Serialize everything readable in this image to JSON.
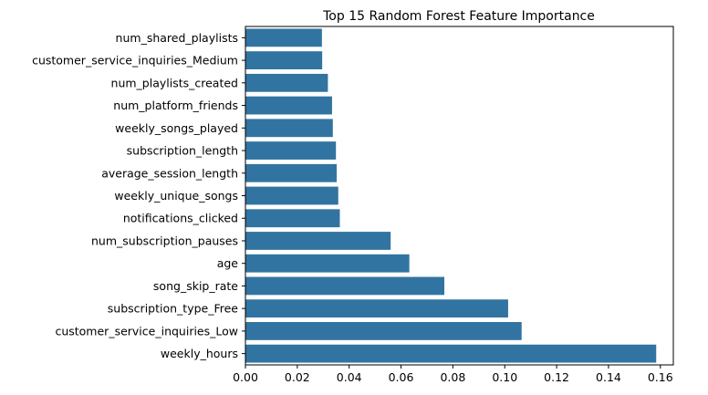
{
  "chart_data": {
    "type": "bar",
    "orientation": "horizontal",
    "title": "Top 15 Random Forest Feature Importance",
    "xlabel": "",
    "ylabel": "",
    "xlim": [
      0,
      0.165
    ],
    "xticks": [
      "0.00",
      "0.02",
      "0.04",
      "0.06",
      "0.08",
      "0.10",
      "0.12",
      "0.14",
      "0.16"
    ],
    "bar_color": "#3274a1",
    "grid": false,
    "categories": [
      "num_shared_playlists",
      "customer_service_inquiries_Medium",
      "num_playlists_created",
      "num_platform_friends",
      "weekly_songs_played",
      "subscription_length",
      "average_session_length",
      "weekly_unique_songs",
      "notifications_clicked",
      "num_subscription_pauses",
      "age",
      "song_skip_rate",
      "subscription_type_Free",
      "customer_service_inquiries_Low",
      "weekly_hours"
    ],
    "values": [
      0.0295,
      0.0296,
      0.0318,
      0.0334,
      0.0337,
      0.0349,
      0.0352,
      0.0358,
      0.0364,
      0.056,
      0.0632,
      0.0767,
      0.1013,
      0.1065,
      0.1584
    ]
  }
}
